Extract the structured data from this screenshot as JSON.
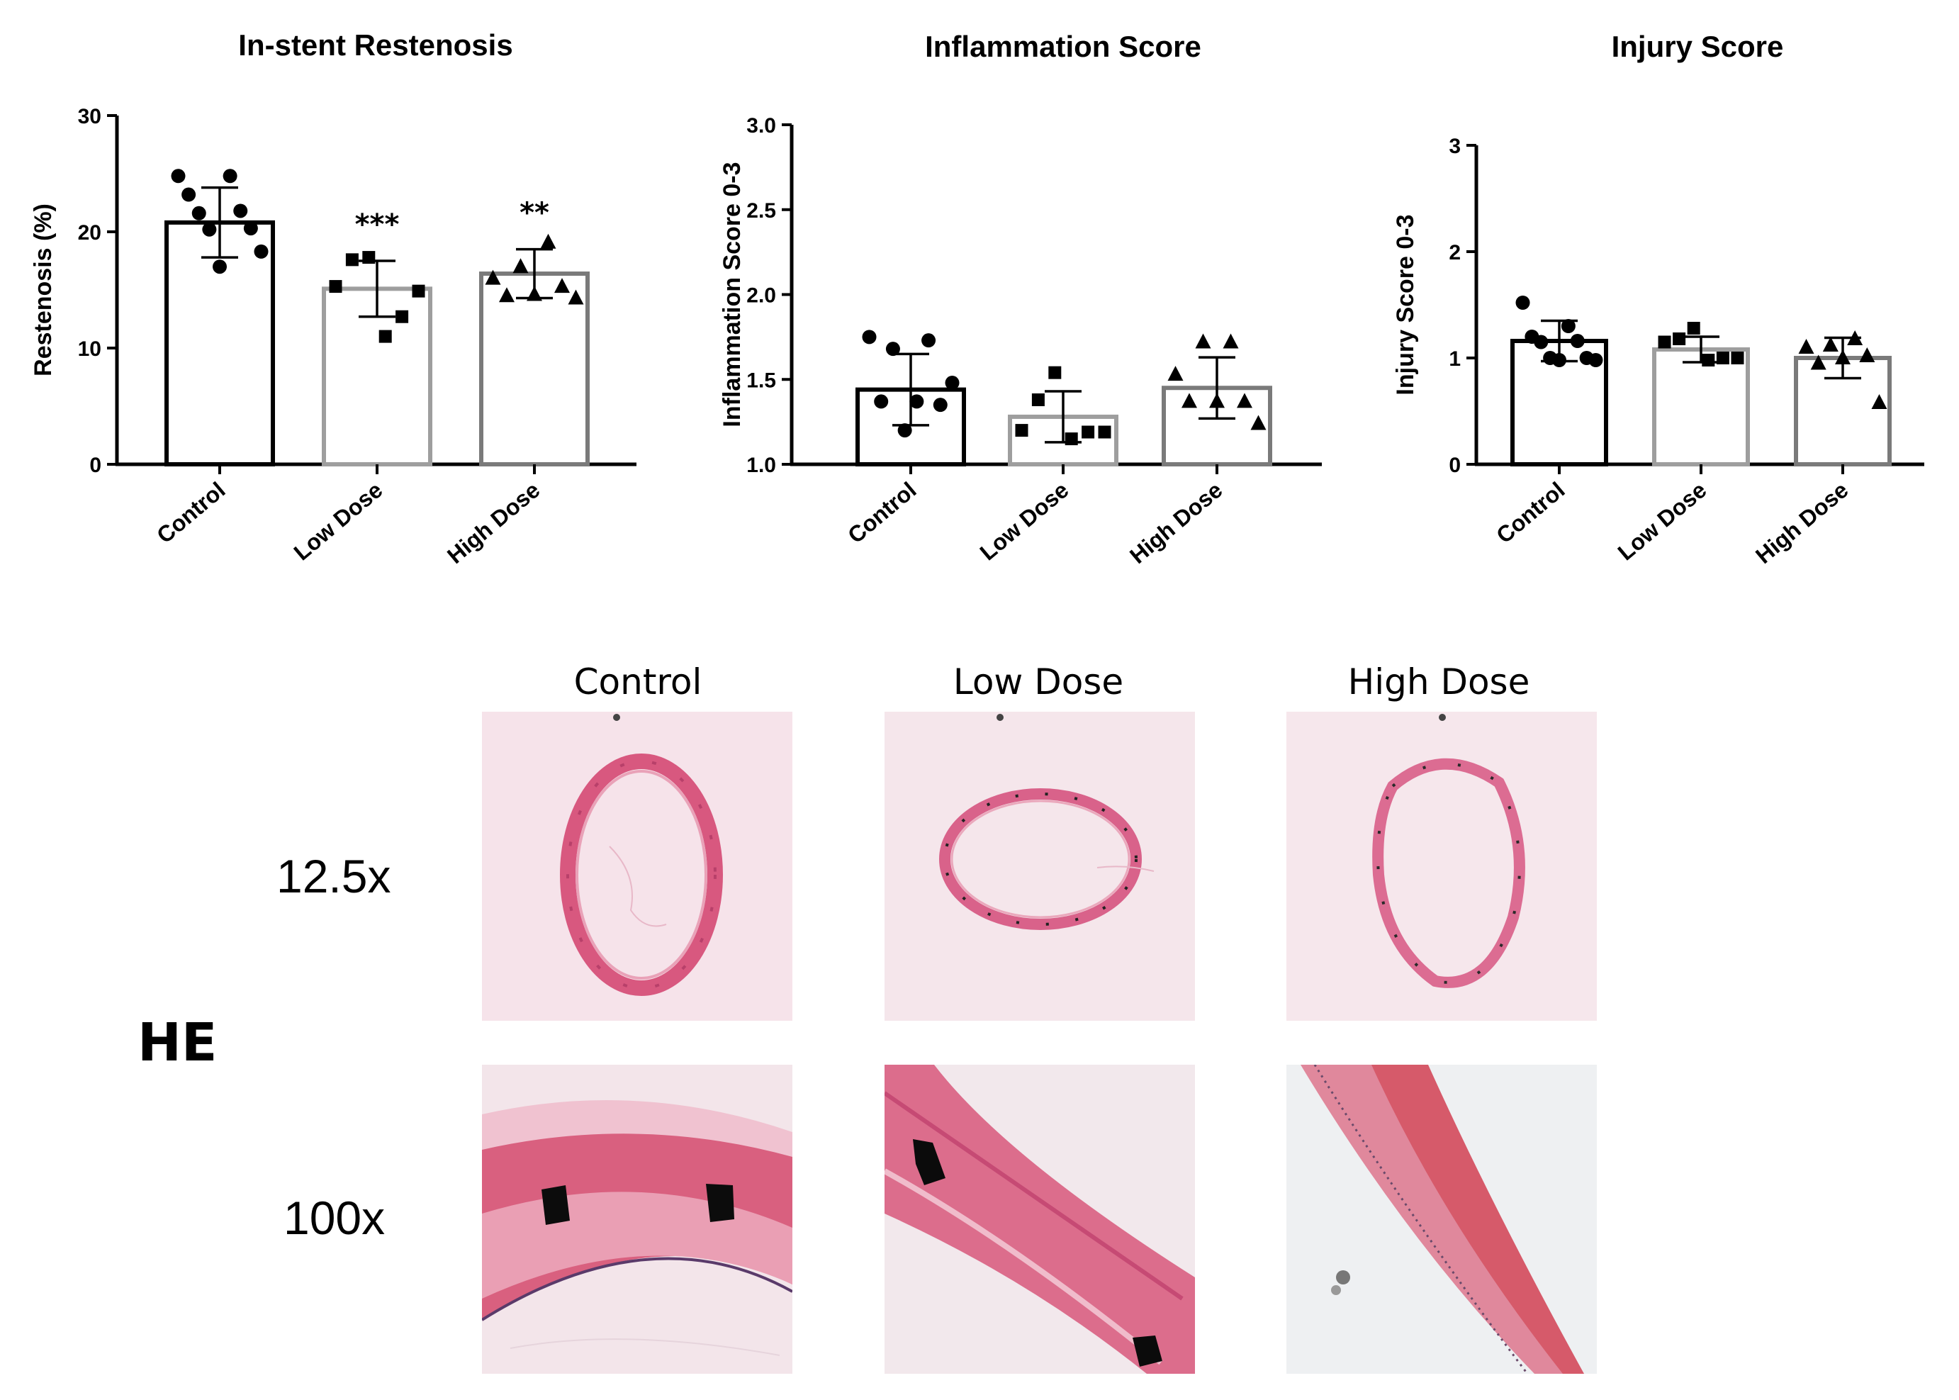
{
  "chart_data": [
    {
      "type": "bar",
      "title": "In-stent Restenosis",
      "xlabel": "",
      "ylabel": "Restenosis (%)",
      "ylim": [
        0,
        30
      ],
      "yticks": [
        "0",
        "10",
        "20",
        "30"
      ],
      "categories": [
        "Control",
        "Low Dose",
        "High Dose"
      ],
      "values": [
        20.8,
        15.1,
        16.4
      ],
      "sd": [
        3.0,
        2.4,
        2.1
      ],
      "significance": [
        "",
        "***",
        "**"
      ],
      "markers": [
        "circle",
        "square",
        "triangle"
      ],
      "points": [
        [
          24.8,
          24.8,
          23.2,
          21.8,
          21.6,
          20.3,
          20.2,
          18.3,
          17.0
        ],
        [
          17.8,
          17.6,
          15.3,
          14.9,
          12.7,
          11.0
        ],
        [
          19.1,
          17.0,
          16.0,
          15.3,
          14.6,
          14.5,
          14.3
        ]
      ],
      "colors": [
        "#000000",
        "#9e9e9e",
        "#7a7a7a"
      ]
    },
    {
      "type": "bar",
      "title": "Inflammation Score",
      "xlabel": "",
      "ylabel": "Inflammation Score 0-3",
      "ylim": [
        1.0,
        3.0
      ],
      "yticks": [
        "1.0",
        "1.5",
        "2.0",
        "2.5",
        "3.0"
      ],
      "categories": [
        "Control",
        "Low Dose",
        "High Dose"
      ],
      "values": [
        1.44,
        1.28,
        1.45
      ],
      "sd": [
        0.21,
        0.15,
        0.18
      ],
      "markers": [
        "circle",
        "square",
        "triangle"
      ],
      "points": [
        [
          1.75,
          1.73,
          1.68,
          1.48,
          1.37,
          1.37,
          1.35,
          1.2
        ],
        [
          1.54,
          1.38,
          1.2,
          1.19,
          1.19,
          1.15
        ],
        [
          1.72,
          1.72,
          1.53,
          1.37,
          1.37,
          1.37,
          1.24
        ]
      ],
      "colors": [
        "#000000",
        "#9e9e9e",
        "#7a7a7a"
      ]
    },
    {
      "type": "bar",
      "title": "Injury Score",
      "xlabel": "",
      "ylabel": "Injury Score 0-3",
      "ylim": [
        0,
        3
      ],
      "yticks": [
        "0",
        "1",
        "2",
        "3"
      ],
      "categories": [
        "Control",
        "Low Dose",
        "High Dose"
      ],
      "values": [
        1.16,
        1.08,
        1.0
      ],
      "sd": [
        0.19,
        0.12,
        0.19
      ],
      "markers": [
        "circle",
        "square",
        "triangle"
      ],
      "points": [
        [
          1.52,
          1.3,
          1.2,
          1.16,
          1.15,
          1.0,
          1.0,
          0.98,
          0.98
        ],
        [
          1.28,
          1.18,
          1.15,
          1.0,
          1.0,
          0.98
        ],
        [
          1.18,
          1.12,
          1.1,
          1.02,
          1.0,
          0.95,
          0.58
        ]
      ],
      "colors": [
        "#000000",
        "#9e9e9e",
        "#7a7a7a"
      ]
    }
  ],
  "panel_b": {
    "columns": [
      "Control",
      "Low Dose",
      "High Dose"
    ],
    "magnifications": [
      "12.5x",
      "100x"
    ],
    "stain": "HE"
  }
}
